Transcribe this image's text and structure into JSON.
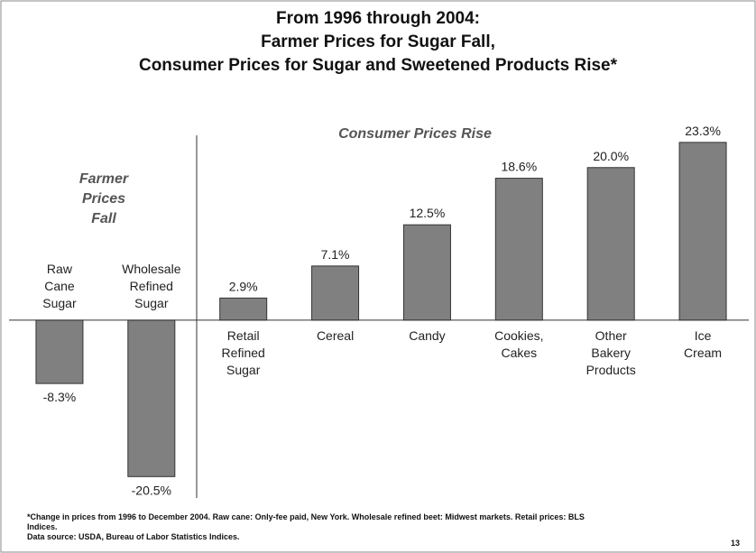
{
  "chart_data": {
    "type": "bar",
    "title": "From 1996 through 2004:\nFarmer Prices for Sugar Fall,\nConsumer Prices for Sugar and Sweetened Products Rise*",
    "annotations": [
      "Farmer\nPrices\nFall",
      "Consumer Prices Rise"
    ],
    "categories": [
      "Raw\nCane\nSugar",
      "Wholesale\nRefined\nSugar",
      "Retail\nRefined\nSugar",
      "Cereal",
      "Candy",
      "Cookies,\nCakes",
      "Other\nBakery\nProducts",
      "Ice\nCream"
    ],
    "values": [
      -8.3,
      -20.5,
      2.9,
      7.1,
      12.5,
      18.6,
      20.0,
      23.3
    ],
    "value_labels": [
      "-8.3%",
      "-20.5%",
      "2.9%",
      "7.1%",
      "12.5%",
      "18.6%",
      "20.0%",
      "23.3%"
    ],
    "color": "#808080",
    "ylim": [
      -22,
      26
    ],
    "footnote": "*Change in prices from 1996 to December 2004. Raw cane: Only-fee paid, New York. Wholesale refined beet: Midwest markets. Retail prices: BLS\nIndices.\nData source: USDA, Bureau of Labor Statistics Indices.",
    "page_number": "13"
  }
}
